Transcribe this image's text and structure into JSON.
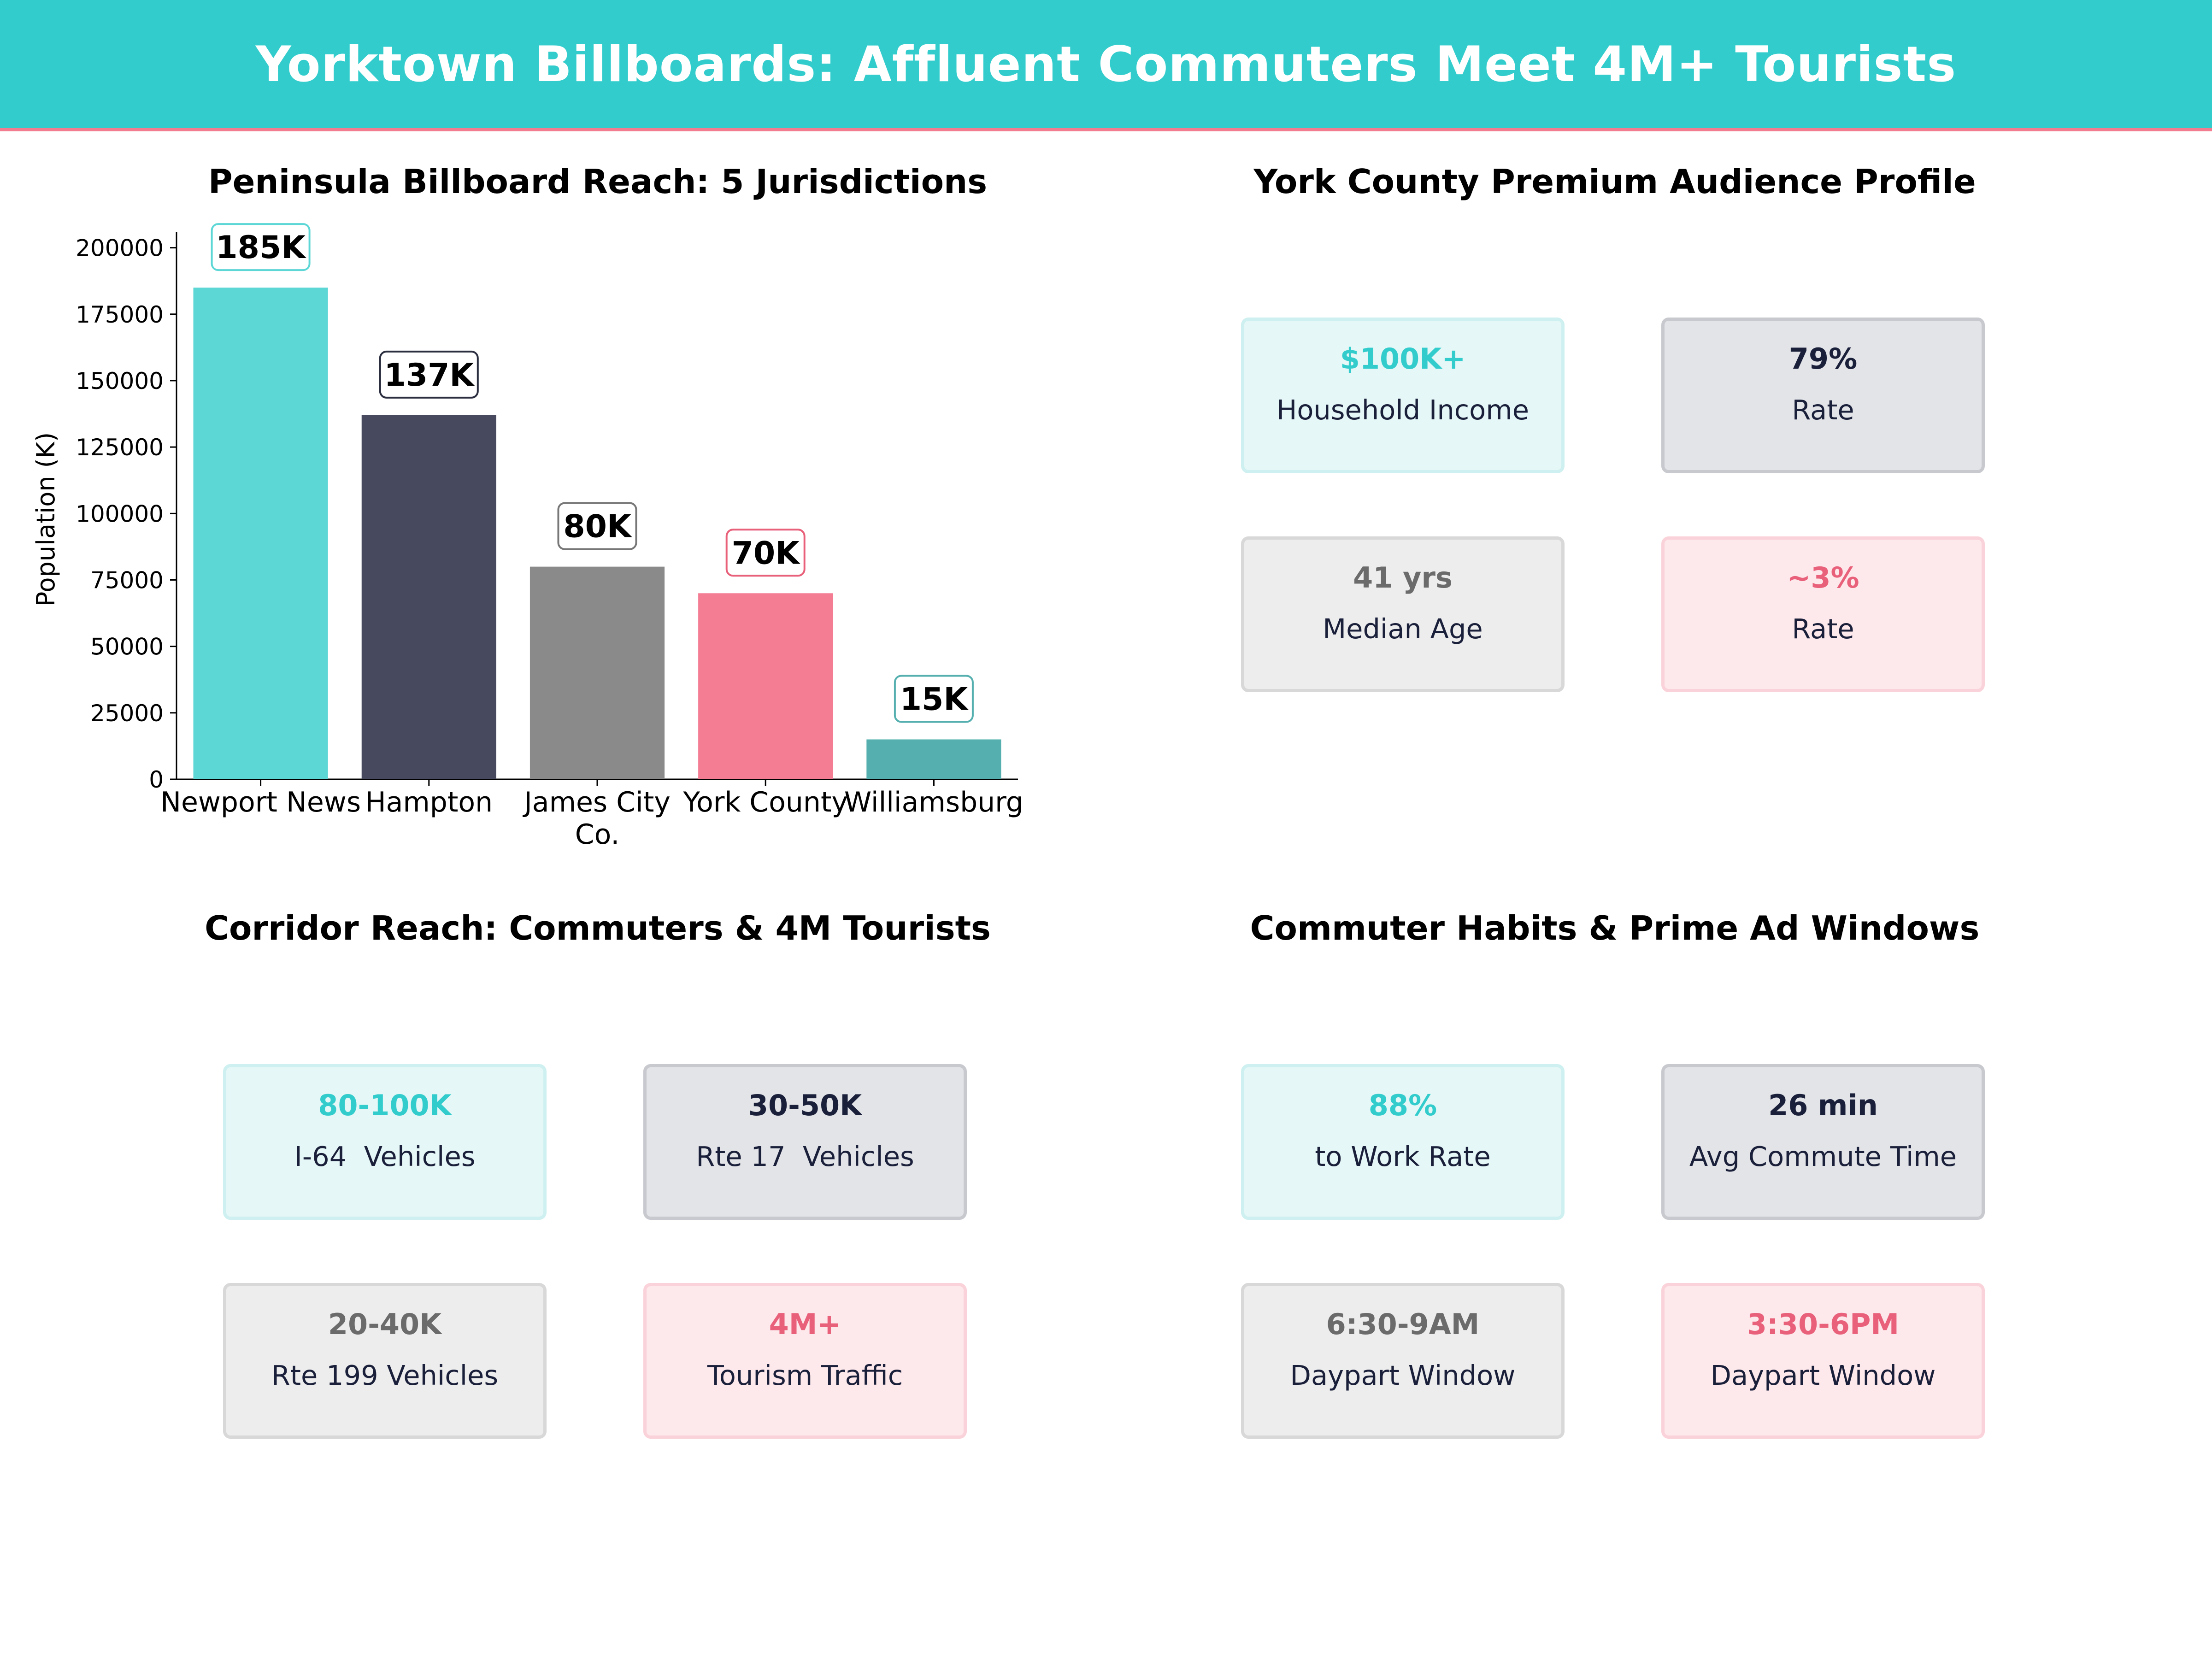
{
  "banner": {
    "title": "Yorktown Billboards: Affluent Commuters Meet 4M+ Tourists"
  },
  "colors": {
    "teal": "#33CCCC",
    "navy": "#1a1f3a",
    "gray": "#6b6b6b",
    "pink": "#F47C8F",
    "dark_teal": "#55AFAF"
  },
  "panels": {
    "reach": {
      "title": "Peninsula Billboard Reach: 5 Jurisdictions"
    },
    "profile": {
      "title": "York County Premium Audience Profile",
      "cards": [
        {
          "value": "$100K+",
          "label": "Household Income"
        },
        {
          "value": "79%",
          "label": "Rate"
        },
        {
          "value": "41 yrs",
          "label": "Median Age"
        },
        {
          "value": "~3%",
          "label": "Rate"
        }
      ]
    },
    "corridor": {
      "title": "Corridor Reach: Commuters & 4M Tourists",
      "cards": [
        {
          "value": "80-100K",
          "label": "I-64  Vehicles"
        },
        {
          "value": "30-50K",
          "label": "Rte 17  Vehicles"
        },
        {
          "value": "20-40K",
          "label": "Rte 199 Vehicles"
        },
        {
          "value": "4M+",
          "label": "Tourism Traffic"
        }
      ]
    },
    "habits": {
      "title": "Commuter Habits & Prime Ad Windows",
      "cards": [
        {
          "value": "88%",
          "label": "to Work Rate"
        },
        {
          "value": "26 min",
          "label": "Avg Commute Time"
        },
        {
          "value": "6:30-9AM",
          "label": "Daypart Window"
        },
        {
          "value": "3:30-6PM",
          "label": "Daypart Window"
        }
      ]
    }
  },
  "chart_data": {
    "type": "bar",
    "title": "Peninsula Billboard Reach: 5 Jurisdictions",
    "xlabel": "",
    "ylabel": "Population (K)",
    "categories": [
      "Newport News",
      "Hampton",
      "James City Co.",
      "York County",
      "Williamsburg"
    ],
    "category_lines": [
      [
        "Newport News"
      ],
      [
        "Hampton"
      ],
      [
        "James City",
        "Co."
      ],
      [
        "York County"
      ],
      [
        "Williamsburg"
      ]
    ],
    "values": [
      185000,
      137000,
      80000,
      70000,
      15000
    ],
    "data_labels": [
      "185K",
      "137K",
      "80K",
      "70K",
      "15K"
    ],
    "bar_colors": [
      "#5DD6D6",
      "#474A5E",
      "#8A8A8A",
      "#F47C93",
      "#55AFAF"
    ],
    "label_border_colors": [
      "#5DD6D6",
      "#2b2e3f",
      "#777777",
      "#E8607A",
      "#55AFAF"
    ],
    "ylim": [
      0,
      206000
    ],
    "yticks": [
      0,
      25000,
      50000,
      75000,
      100000,
      125000,
      150000,
      175000,
      200000
    ],
    "grid": false
  }
}
